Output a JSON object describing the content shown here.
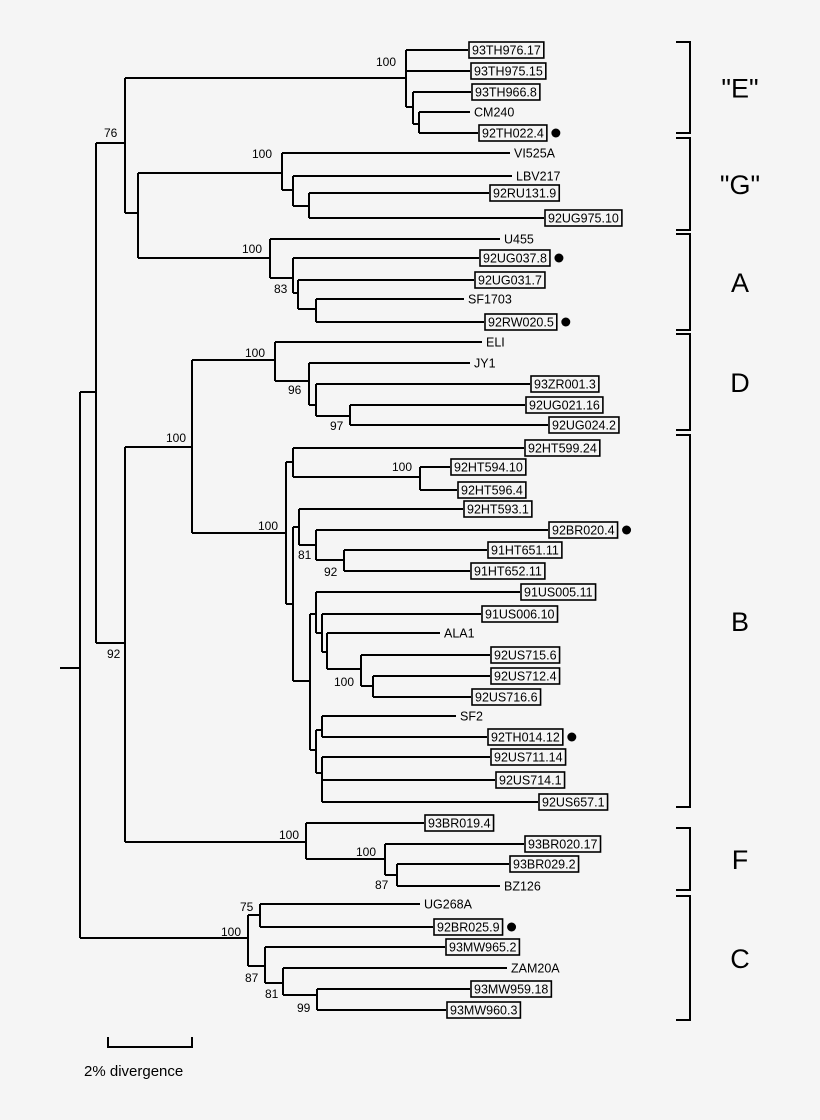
{
  "leaves": [
    {
      "name": "93TH976.17",
      "boxed": true,
      "dot": false
    },
    {
      "name": "93TH975.15",
      "boxed": true,
      "dot": false
    },
    {
      "name": "93TH966.8",
      "boxed": true,
      "dot": false
    },
    {
      "name": "CM240",
      "boxed": false,
      "dot": false
    },
    {
      "name": "92TH022.4",
      "boxed": true,
      "dot": true
    },
    {
      "name": "VI525A",
      "boxed": false,
      "dot": false
    },
    {
      "name": "LBV217",
      "boxed": false,
      "dot": false
    },
    {
      "name": "92RU131.9",
      "boxed": true,
      "dot": false
    },
    {
      "name": "92UG975.10",
      "boxed": true,
      "dot": false
    },
    {
      "name": "U455",
      "boxed": false,
      "dot": false
    },
    {
      "name": "92UG037.8",
      "boxed": true,
      "dot": true
    },
    {
      "name": "92UG031.7",
      "boxed": true,
      "dot": false
    },
    {
      "name": "SF1703",
      "boxed": false,
      "dot": false
    },
    {
      "name": "92RW020.5",
      "boxed": true,
      "dot": true
    },
    {
      "name": "ELI",
      "boxed": false,
      "dot": false
    },
    {
      "name": "JY1",
      "boxed": false,
      "dot": false
    },
    {
      "name": "93ZR001.3",
      "boxed": true,
      "dot": false
    },
    {
      "name": "92UG021.16",
      "boxed": true,
      "dot": false
    },
    {
      "name": "92UG024.2",
      "boxed": true,
      "dot": false
    },
    {
      "name": "92HT599.24",
      "boxed": true,
      "dot": false
    },
    {
      "name": "92HT594.10",
      "boxed": true,
      "dot": false
    },
    {
      "name": "92HT596.4",
      "boxed": true,
      "dot": false
    },
    {
      "name": "92HT593.1",
      "boxed": true,
      "dot": false
    },
    {
      "name": "92BR020.4",
      "boxed": true,
      "dot": true
    },
    {
      "name": "91HT651.11",
      "boxed": true,
      "dot": false
    },
    {
      "name": "91HT652.11",
      "boxed": true,
      "dot": false
    },
    {
      "name": "91US005.11",
      "boxed": true,
      "dot": false
    },
    {
      "name": "91US006.10",
      "boxed": true,
      "dot": false
    },
    {
      "name": "ALA1",
      "boxed": false,
      "dot": false
    },
    {
      "name": "92US715.6",
      "boxed": true,
      "dot": false
    },
    {
      "name": "92US712.4",
      "boxed": true,
      "dot": false
    },
    {
      "name": "92US716.6",
      "boxed": true,
      "dot": false
    },
    {
      "name": "SF2",
      "boxed": false,
      "dot": false
    },
    {
      "name": "92TH014.12",
      "boxed": true,
      "dot": true
    },
    {
      "name": "92US711.14",
      "boxed": true,
      "dot": false
    },
    {
      "name": "92US714.1",
      "boxed": true,
      "dot": false
    },
    {
      "name": "92US657.1",
      "boxed": true,
      "dot": false
    },
    {
      "name": "93BR019.4",
      "boxed": true,
      "dot": false
    },
    {
      "name": "93BR020.17",
      "boxed": true,
      "dot": false
    },
    {
      "name": "93BR029.2",
      "boxed": true,
      "dot": false
    },
    {
      "name": "BZ126",
      "boxed": false,
      "dot": false
    },
    {
      "name": "UG268A",
      "boxed": false,
      "dot": false
    },
    {
      "name": "92BR025.9",
      "boxed": true,
      "dot": true
    },
    {
      "name": "93MW965.2",
      "boxed": true,
      "dot": false
    },
    {
      "name": "ZAM20A",
      "boxed": false,
      "dot": false
    },
    {
      "name": "93MW959.18",
      "boxed": true,
      "dot": false
    },
    {
      "name": "93MW960.3",
      "boxed": true,
      "dot": false
    }
  ],
  "bootstrap": [
    "100",
    "76",
    "100",
    "100",
    "83",
    "100",
    "96",
    "97",
    "100",
    "92",
    "100",
    "100",
    "81",
    "92",
    "100",
    "100",
    "100",
    "87",
    "75",
    "100",
    "87",
    "81",
    "99"
  ],
  "clades": [
    "\"E\"",
    "\"G\"",
    "A",
    "D",
    "B",
    "F",
    "C"
  ],
  "scale_bar": {
    "label": "2% divergence"
  }
}
